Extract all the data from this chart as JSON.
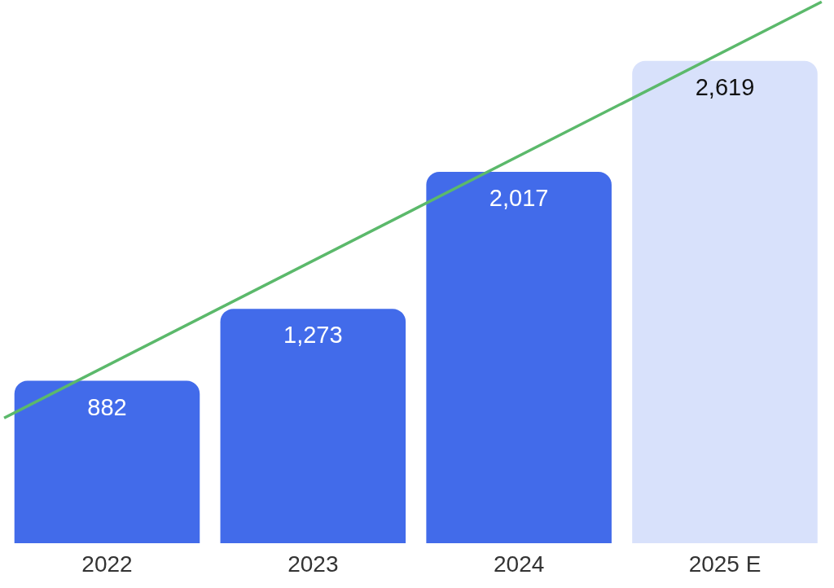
{
  "chart_data": {
    "type": "bar",
    "x": [
      2022,
      2023,
      2024,
      2025
    ],
    "xlim": [
      2021.48,
      2025.53
    ],
    "xticks": [
      2022,
      2023,
      2024,
      {
        "value": 2025,
        "label": "2025 E"
      }
    ],
    "ylim": [
      0,
      2950
    ],
    "tick_labels": "x",
    "series": [
      {
        "values": [
          882,
          1273,
          2017,
          2619
        ],
        "colors": [
          "#426bea",
          "#426bea",
          "#426bea",
          "#d8e1fb"
        ],
        "value_labels": [
          "882",
          "1,273",
          "2,017",
          "2,619"
        ]
      },
      {
        "type": "line",
        "x": [
          2021.5,
          2025.47
        ],
        "values": [
          680,
          2940
        ],
        "color": "#5bb96b"
      }
    ]
  }
}
